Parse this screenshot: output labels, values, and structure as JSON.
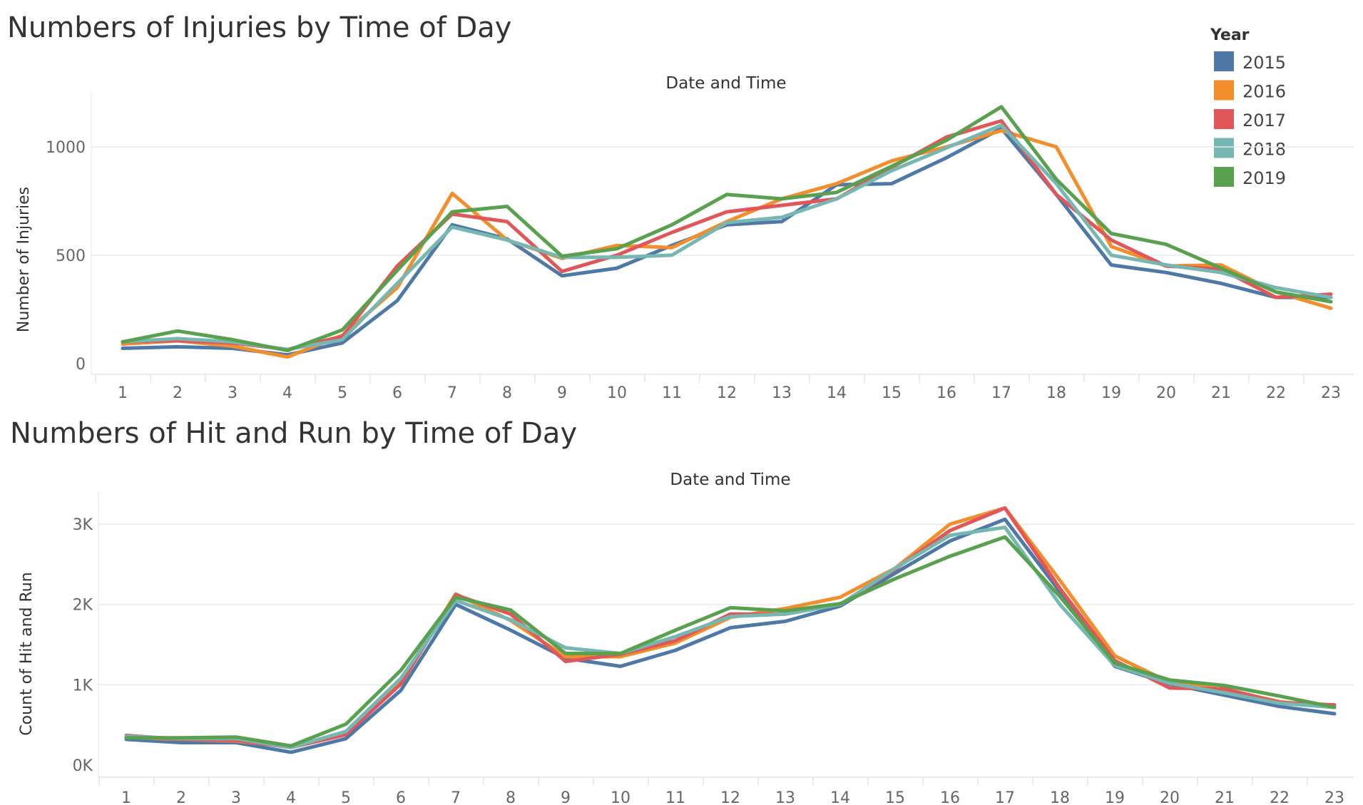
{
  "chart_data": [
    {
      "type": "line",
      "title": "Numbers of Injuries by Time of Day",
      "column_header": "Date and Time",
      "xlabel": "",
      "ylabel": "Number of Injuries",
      "categories": [
        "1",
        "2",
        "3",
        "4",
        "5",
        "6",
        "7",
        "8",
        "9",
        "10",
        "11",
        "12",
        "13",
        "14",
        "15",
        "16",
        "17",
        "18",
        "19",
        "20",
        "21",
        "22",
        "23"
      ],
      "ylim": [
        -50,
        1250
      ],
      "yticks": [
        0,
        500,
        1000
      ],
      "ytick_labels": [
        "0",
        "500",
        "1000"
      ],
      "grid": true,
      "series": [
        {
          "name": "2015",
          "color": "#4e79a7",
          "values": [
            70,
            77,
            70,
            40,
            95,
            290,
            640,
            575,
            405,
            440,
            545,
            640,
            655,
            825,
            830,
            950,
            1085,
            780,
            455,
            420,
            370,
            305,
            305
          ]
        },
        {
          "name": "2016",
          "color": "#f28e2b",
          "values": [
            90,
            105,
            80,
            30,
            130,
            350,
            785,
            570,
            485,
            545,
            535,
            655,
            760,
            830,
            935,
            1000,
            1075,
            1000,
            540,
            450,
            455,
            330,
            255
          ]
        },
        {
          "name": "2017",
          "color": "#e15759",
          "values": [
            100,
            105,
            95,
            65,
            125,
            450,
            690,
            655,
            425,
            500,
            605,
            700,
            730,
            760,
            905,
            1045,
            1120,
            780,
            570,
            450,
            435,
            305,
            320
          ]
        },
        {
          "name": "2018",
          "color": "#76b7b2",
          "values": [
            100,
            115,
            100,
            65,
            110,
            370,
            630,
            570,
            490,
            490,
            500,
            650,
            675,
            760,
            890,
            995,
            1100,
            830,
            500,
            455,
            420,
            350,
            305
          ]
        },
        {
          "name": "2019",
          "color": "#59a14f",
          "values": [
            100,
            150,
            110,
            60,
            155,
            430,
            700,
            725,
            495,
            530,
            640,
            780,
            760,
            790,
            910,
            1030,
            1185,
            850,
            600,
            550,
            440,
            330,
            285
          ]
        }
      ]
    },
    {
      "type": "line",
      "title": "Numbers of Hit and Run by Time of Day",
      "column_header": "Date and Time",
      "xlabel": "",
      "ylabel": "Count of Hit and Run",
      "categories": [
        "1",
        "2",
        "3",
        "4",
        "5",
        "6",
        "7",
        "8",
        "9",
        "10",
        "11",
        "12",
        "13",
        "14",
        "15",
        "16",
        "17",
        "18",
        "19",
        "20",
        "21",
        "22",
        "23"
      ],
      "ylim": [
        -150,
        3400
      ],
      "yticks": [
        0,
        1000,
        2000,
        3000
      ],
      "ytick_labels": [
        "0K",
        "1K",
        "2K",
        "3K"
      ],
      "grid": true,
      "series": [
        {
          "name": "2015",
          "color": "#4e79a7",
          "values": [
            320,
            280,
            280,
            160,
            330,
            930,
            2000,
            1680,
            1330,
            1230,
            1430,
            1710,
            1790,
            1980,
            2390,
            2790,
            3060,
            2160,
            1230,
            1010,
            870,
            730,
            640
          ]
        },
        {
          "name": "2016",
          "color": "#f28e2b",
          "values": [
            350,
            320,
            300,
            230,
            400,
            1050,
            2130,
            1800,
            1350,
            1350,
            1520,
            1840,
            1950,
            2090,
            2450,
            3000,
            3200,
            2300,
            1360,
            1030,
            940,
            790,
            720
          ]
        },
        {
          "name": "2017",
          "color": "#e15759",
          "values": [
            370,
            320,
            310,
            220,
            380,
            1010,
            2120,
            1880,
            1290,
            1380,
            1550,
            1880,
            1880,
            2000,
            2440,
            2920,
            3200,
            2200,
            1300,
            960,
            950,
            780,
            750
          ]
        },
        {
          "name": "2018",
          "color": "#76b7b2",
          "values": [
            360,
            330,
            330,
            220,
            420,
            1080,
            2050,
            1810,
            1460,
            1390,
            1600,
            1850,
            1880,
            2000,
            2450,
            2860,
            2960,
            2000,
            1240,
            1020,
            900,
            770,
            720
          ]
        },
        {
          "name": "2019",
          "color": "#59a14f",
          "values": [
            340,
            340,
            350,
            240,
            510,
            1180,
            2090,
            1930,
            1390,
            1390,
            1680,
            1960,
            1920,
            2010,
            2320,
            2600,
            2840,
            2100,
            1270,
            1060,
            990,
            860,
            720
          ]
        }
      ]
    }
  ],
  "legend": {
    "title": "Year",
    "items": [
      {
        "label": "2015",
        "color": "#4e79a7"
      },
      {
        "label": "2016",
        "color": "#f28e2b"
      },
      {
        "label": "2017",
        "color": "#e15759"
      },
      {
        "label": "2018",
        "color": "#76b7b2"
      },
      {
        "label": "2019",
        "color": "#59a14f"
      }
    ]
  }
}
